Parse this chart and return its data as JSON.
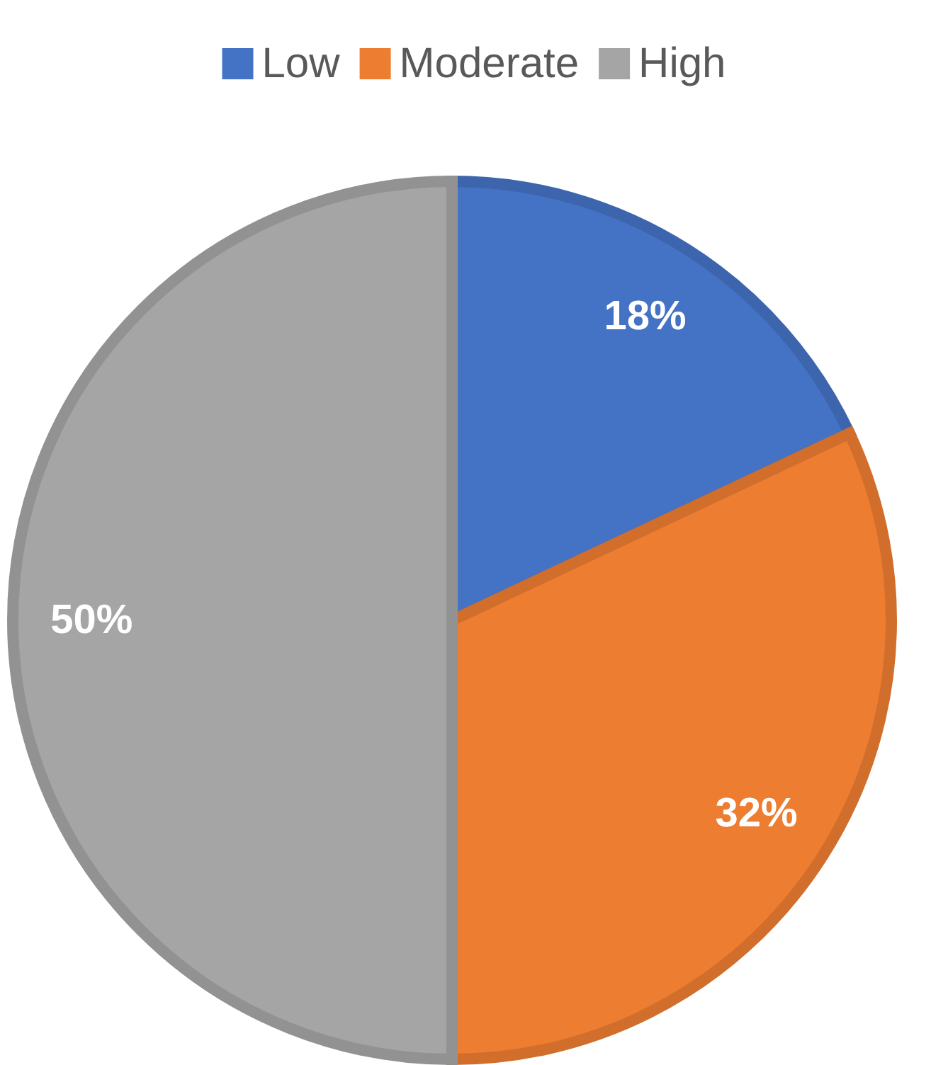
{
  "chart_data": {
    "type": "pie",
    "categories": [
      "Low",
      "Moderate",
      "High"
    ],
    "values": [
      18,
      32,
      50
    ],
    "colors": [
      "#4472c4",
      "#ed7d31",
      "#a5a5a5"
    ],
    "value_labels": [
      "18%",
      "32%",
      "50%"
    ],
    "legend": "top"
  }
}
